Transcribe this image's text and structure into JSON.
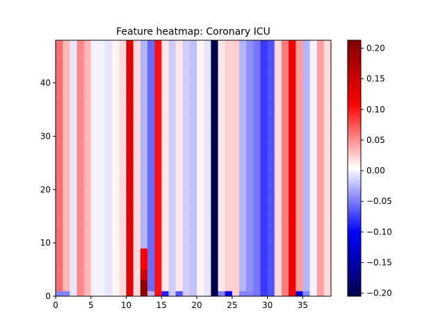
{
  "chart_data": {
    "type": "heatmap",
    "title": "Feature heatmap: Coronary ICU",
    "xlabel": "",
    "ylabel": "",
    "xlim": [
      0,
      39
    ],
    "ylim": [
      0,
      48
    ],
    "x_ticks": [
      0,
      5,
      10,
      15,
      20,
      25,
      30,
      35
    ],
    "y_ticks": [
      0,
      10,
      20,
      30,
      40
    ],
    "colormap": "seismic",
    "colorbar": {
      "vmin": -0.205,
      "vmax": 0.213,
      "ticks": [
        "0.20",
        "0.15",
        "0.10",
        "0.05",
        "0.00",
        "−0.05",
        "−0.10",
        "−0.15",
        "−0.20"
      ],
      "tick_values": [
        0.2,
        0.15,
        0.1,
        0.05,
        0.0,
        -0.05,
        -0.1,
        -0.15,
        -0.2
      ]
    },
    "n_rows": 48,
    "n_cols": 39,
    "column_values": [
      0.06,
      0.03,
      -0.01,
      0.05,
      0.03,
      -0.005,
      -0.005,
      -0.01,
      0.005,
      0.015,
      0.13,
      0.015,
      -0.03,
      -0.06,
      0.1,
      0.01,
      -0.02,
      0.01,
      -0.02,
      -0.025,
      0.005,
      -0.01,
      -0.205,
      0.01,
      0.02,
      0.02,
      -0.03,
      -0.045,
      -0.055,
      -0.08,
      -0.07,
      0.015,
      0.055,
      0.11,
      0.04,
      -0.03,
      -0.005,
      0.04,
      0.015
    ],
    "bottom_row_overrides": [
      {
        "col": 0,
        "rows": [
          0
        ],
        "value": -0.05
      },
      {
        "col": 1,
        "rows": [
          0
        ],
        "value": -0.05
      },
      {
        "col": 12,
        "rows": [
          0,
          1,
          2
        ],
        "value": 0.2
      },
      {
        "col": 12,
        "rows": [
          3,
          4
        ],
        "value": 0.15
      },
      {
        "col": 12,
        "rows": [
          5,
          6,
          7,
          8
        ],
        "value": 0.11
      },
      {
        "col": 13,
        "rows": [
          0
        ],
        "value": -0.03
      },
      {
        "col": 15,
        "rows": [
          0
        ],
        "value": -0.09
      },
      {
        "col": 17,
        "rows": [
          0
        ],
        "value": -0.07
      },
      {
        "col": 23,
        "rows": [
          0
        ],
        "value": -0.05
      },
      {
        "col": 24,
        "rows": [
          0
        ],
        "value": -0.12
      },
      {
        "col": 26,
        "rows": [
          0
        ],
        "value": -0.05
      },
      {
        "col": 27,
        "rows": [
          0
        ],
        "value": -0.05
      },
      {
        "col": 34,
        "rows": [
          0
        ],
        "value": -0.12
      },
      {
        "col": 35,
        "rows": [
          0
        ],
        "value": -0.05
      }
    ]
  }
}
